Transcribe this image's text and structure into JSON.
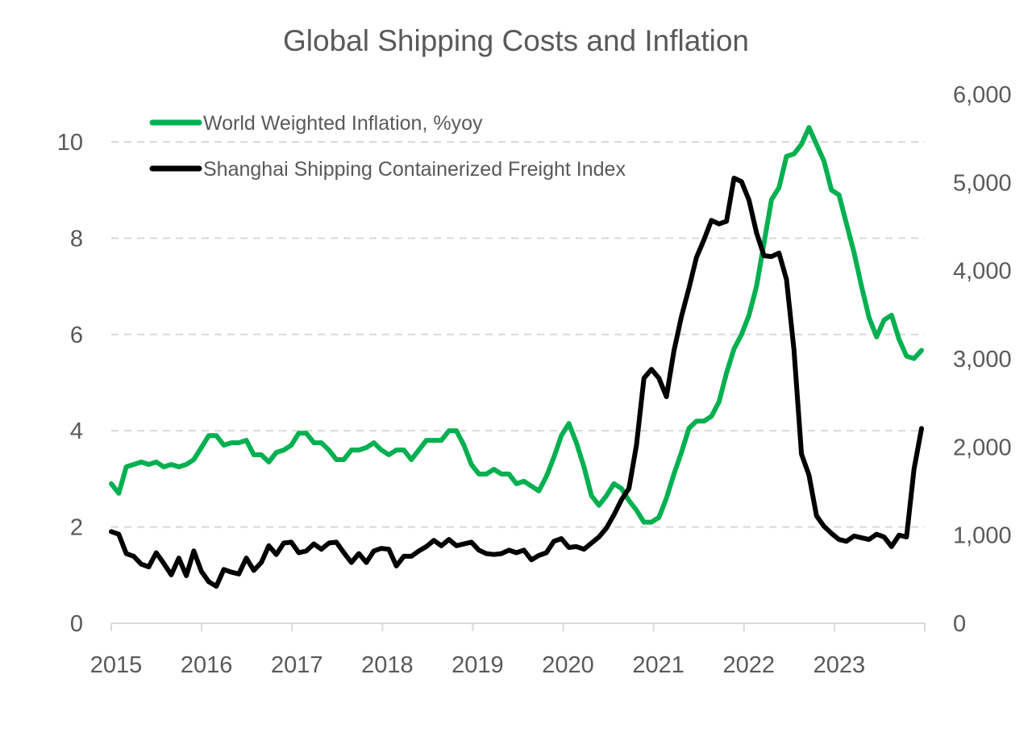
{
  "chart_data": {
    "type": "line",
    "title": "Global Shipping Costs and Inflation",
    "xlabel": "",
    "ylabel_left": "",
    "ylabel_right": "",
    "x_start": "2015-01",
    "x_frequency": "monthly",
    "x_ticks": [
      "2015",
      "2016",
      "2017",
      "2018",
      "2019",
      "2020",
      "2021",
      "2022",
      "2023"
    ],
    "x_range": [
      "2015-01",
      "2024-01"
    ],
    "y_left": {
      "range": [
        0,
        11
      ],
      "ticks": [
        0,
        2,
        4,
        6,
        8,
        10
      ],
      "tick_labels": [
        "0",
        "2",
        "4",
        "6",
        "8",
        "10"
      ]
    },
    "y_right": {
      "range": [
        0,
        6000
      ],
      "ticks": [
        0,
        1000,
        2000,
        3000,
        4000,
        5000,
        6000
      ],
      "tick_labels": [
        "0",
        "1,000",
        "2,000",
        "3,000",
        "4,000",
        "5,000",
        "6,000"
      ]
    },
    "grid": true,
    "legend_position": "top-left",
    "series": [
      {
        "name": "World Weighted Inflation, %yoy",
        "axis": "left",
        "color": "#00b050",
        "values": [
          2.9,
          2.7,
          3.25,
          3.3,
          3.35,
          3.3,
          3.35,
          3.25,
          3.3,
          3.25,
          3.3,
          3.4,
          3.65,
          3.9,
          3.9,
          3.7,
          3.75,
          3.75,
          3.8,
          3.5,
          3.5,
          3.35,
          3.55,
          3.6,
          3.7,
          3.95,
          3.95,
          3.75,
          3.75,
          3.6,
          3.4,
          3.4,
          3.6,
          3.6,
          3.65,
          3.75,
          3.6,
          3.5,
          3.6,
          3.6,
          3.4,
          3.6,
          3.8,
          3.8,
          3.8,
          4.0,
          4.0,
          3.7,
          3.3,
          3.1,
          3.1,
          3.2,
          3.1,
          3.1,
          2.9,
          2.95,
          2.85,
          2.75,
          3.05,
          3.45,
          3.9,
          4.15,
          3.75,
          3.25,
          2.65,
          2.45,
          2.65,
          2.9,
          2.8,
          2.55,
          2.35,
          2.1,
          2.1,
          2.2,
          2.6,
          3.1,
          3.55,
          4.05,
          4.2,
          4.2,
          4.3,
          4.6,
          5.2,
          5.7,
          6.0,
          6.4,
          7.0,
          7.9,
          8.8,
          9.05,
          9.7,
          9.75,
          9.95,
          10.3,
          9.95,
          9.6,
          9.0,
          8.9,
          8.3,
          7.7,
          7.0,
          6.35,
          5.95,
          6.3,
          6.4,
          5.9,
          5.55,
          5.5,
          5.67
        ]
      },
      {
        "name": "Shanghai Shipping Containerized Freight Index",
        "axis": "right",
        "color": "#000000",
        "values": [
          1040,
          1010,
          790,
          760,
          670,
          640,
          800,
          680,
          550,
          740,
          540,
          820,
          590,
          470,
          420,
          610,
          580,
          560,
          740,
          600,
          690,
          880,
          780,
          910,
          920,
          800,
          820,
          900,
          840,
          910,
          920,
          800,
          690,
          790,
          690,
          820,
          850,
          840,
          650,
          760,
          760,
          820,
          870,
          940,
          880,
          950,
          880,
          900,
          920,
          830,
          790,
          780,
          790,
          830,
          800,
          830,
          720,
          770,
          800,
          930,
          960,
          860,
          870,
          840,
          910,
          980,
          1080,
          1230,
          1400,
          1530,
          2020,
          2780,
          2880,
          2780,
          2570,
          3090,
          3480,
          3800,
          4150,
          4350,
          4570,
          4530,
          4560,
          5050,
          5010,
          4800,
          4430,
          4170,
          4160,
          4200,
          3900,
          3100,
          1920,
          1680,
          1220,
          1100,
          1020,
          950,
          930,
          990,
          970,
          950,
          1010,
          980,
          870,
          1000,
          980,
          1750,
          2210
        ]
      }
    ]
  }
}
